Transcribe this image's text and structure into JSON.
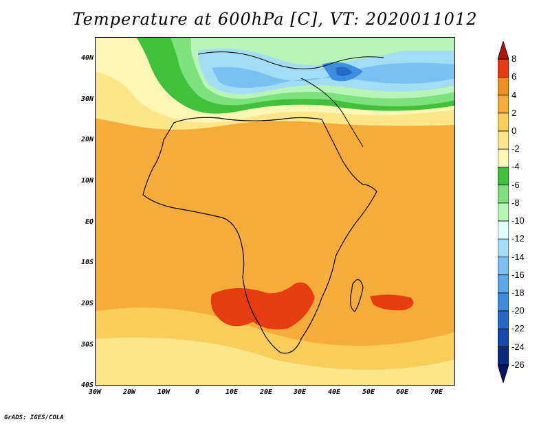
{
  "title": "Temperature at 600hPa [C], VT: 2020011012",
  "credit": "GrADS: IGES/COLA",
  "map": {
    "lat_labels": [
      "40N",
      "30N",
      "20N",
      "10N",
      "EQ",
      "10S",
      "20S",
      "30S",
      "40S"
    ],
    "lon_labels": [
      "30W",
      "20W",
      "10W",
      "0",
      "10E",
      "20E",
      "30E",
      "40E",
      "50E",
      "60E",
      "70E"
    ],
    "variable": "Temperature",
    "level": "600hPa",
    "units": "C",
    "valid_time": "2020011012"
  },
  "colorbar": {
    "labels": [
      "8",
      "6",
      "4",
      "2",
      "0",
      "-2",
      "-4",
      "-6",
      "-8",
      "-10",
      "-12",
      "-14",
      "-16",
      "-18",
      "-20",
      "-22",
      "-24",
      "-26"
    ],
    "colors": [
      "#b4100e",
      "#e73b11",
      "#f08f1f",
      "#f5ad39",
      "#f9cd59",
      "#fde68a",
      "#fdf7b5",
      "#3fc13c",
      "#7de17d",
      "#b6f5b5",
      "#e0fcfb",
      "#a3dcf5",
      "#78c1f0",
      "#5aa9e8",
      "#3d8ede",
      "#2668c8",
      "#1548ac",
      "#0a2a82",
      "#061564"
    ]
  }
}
